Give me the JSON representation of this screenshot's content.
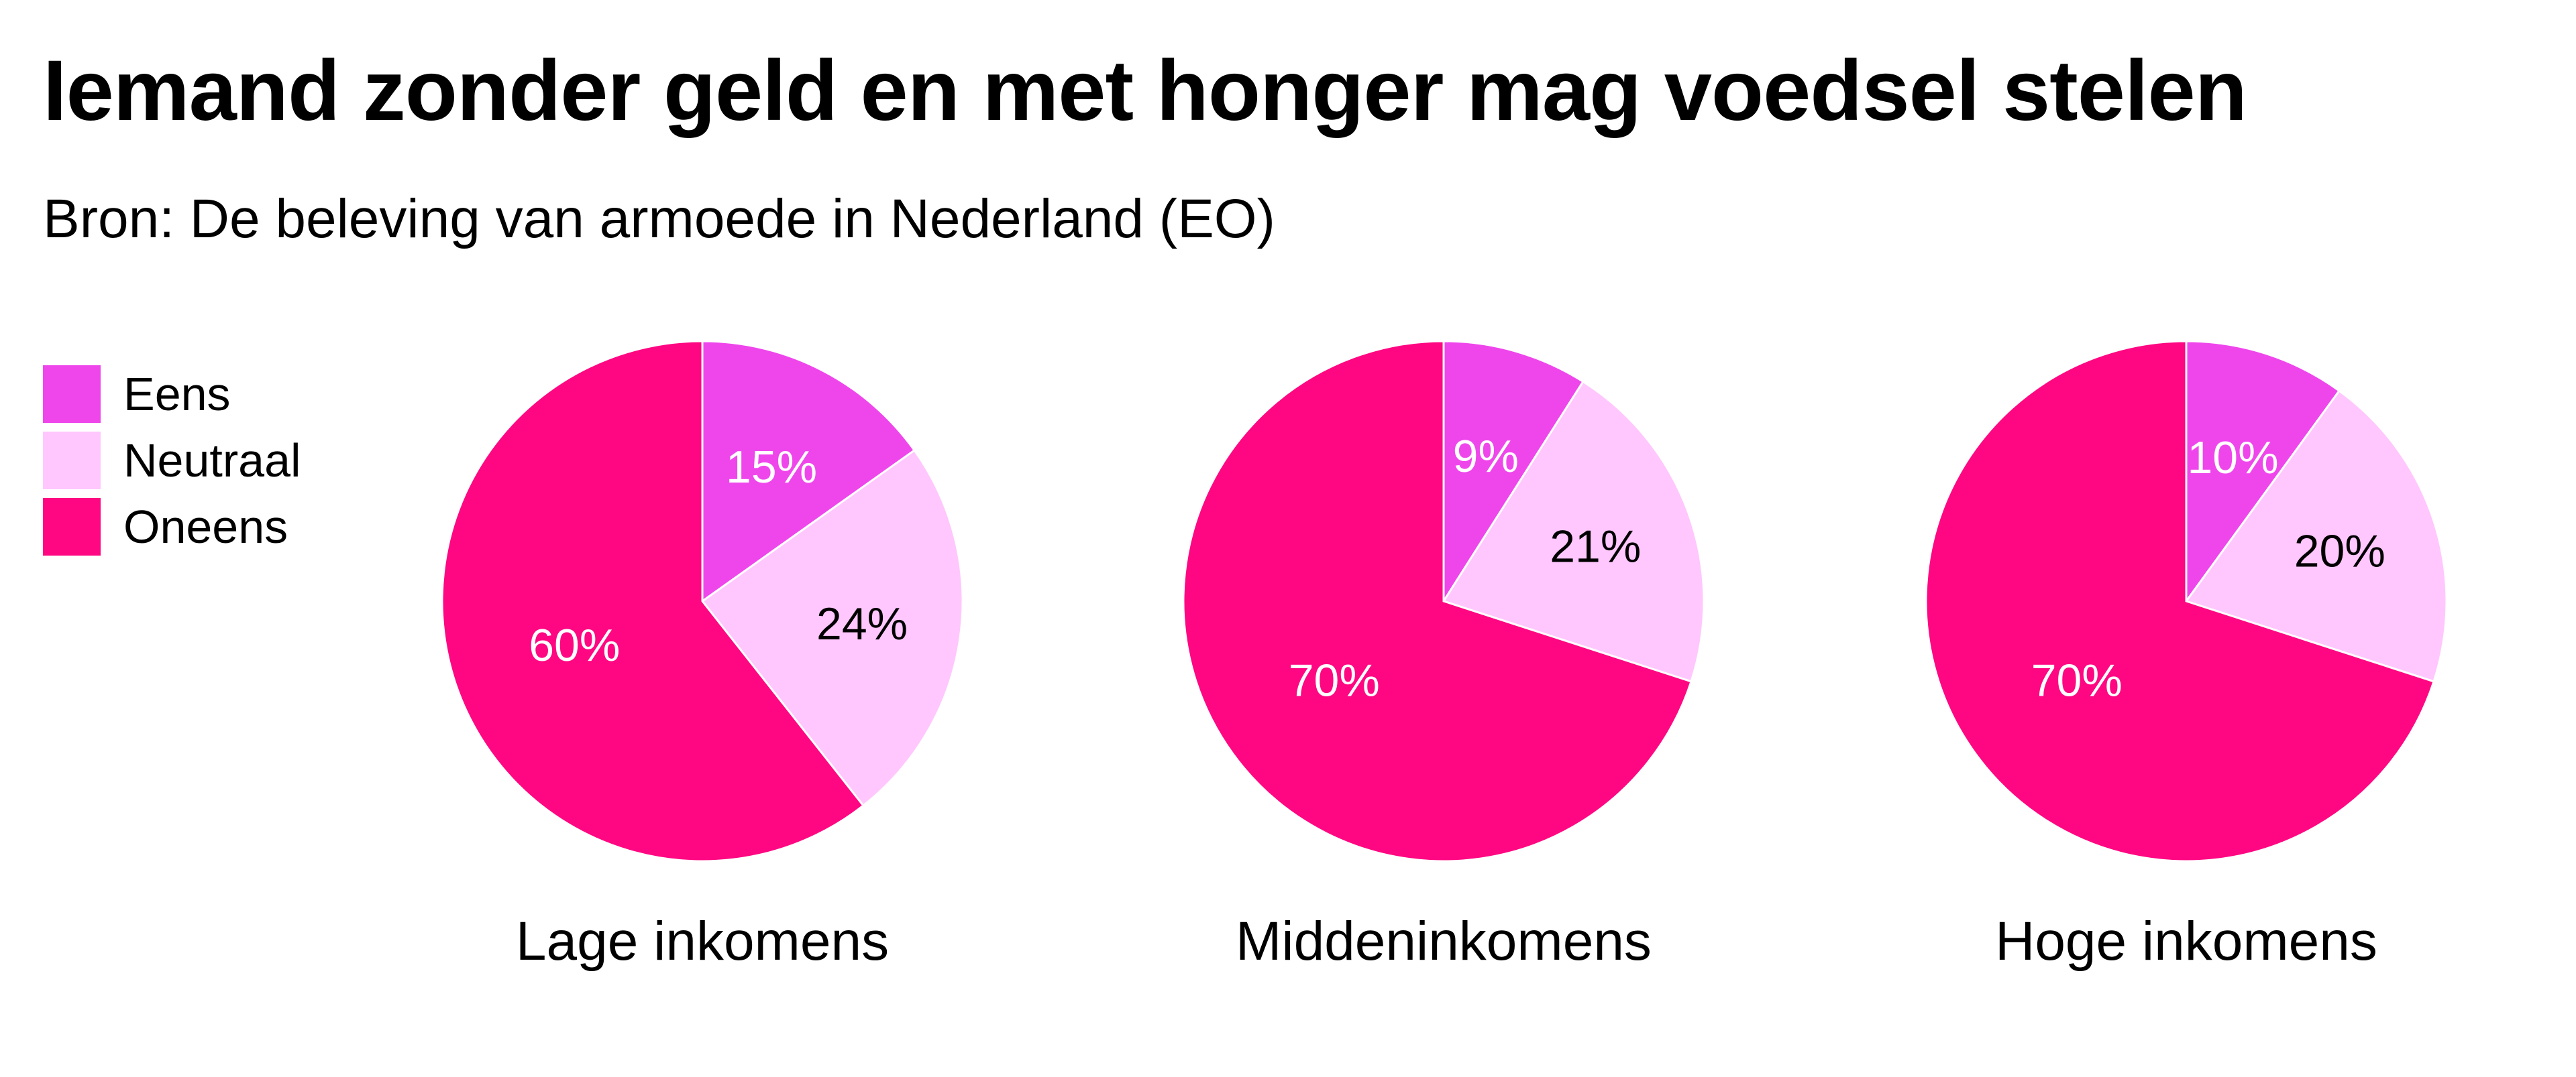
{
  "colors": {
    "eens": "#ef46ec",
    "neutraal": "#ffc7fd",
    "oneens": "#ff0682"
  },
  "chart_data": {
    "type": "pie",
    "title": "Iemand zonder geld en met honger mag voedsel stelen",
    "subtitle": "Bron: De beleving van armoede in Nederland (EO)",
    "legend_position": "top-left",
    "legend": [
      {
        "label": "Eens",
        "color": "#ef46ec",
        "icon": "square-swatch"
      },
      {
        "label": "Neutraal",
        "color": "#ffc7fd",
        "icon": "square-swatch"
      },
      {
        "label": "Oneens",
        "color": "#ff0682",
        "icon": "square-swatch"
      }
    ],
    "categories": [
      "Eens",
      "Neutraal",
      "Oneens"
    ],
    "pies": [
      {
        "name": "Lage inkomens",
        "slices": [
          {
            "category": "Eens",
            "value": 15,
            "label": "15%",
            "label_color": "#ffffff"
          },
          {
            "category": "Neutraal",
            "value": 24,
            "label": "24%",
            "label_color": "#000000"
          },
          {
            "category": "Oneens",
            "value": 60,
            "label": "60%",
            "label_color": "#ffffff"
          }
        ]
      },
      {
        "name": "Middeninkomens",
        "slices": [
          {
            "category": "Eens",
            "value": 9,
            "label": "9%",
            "label_color": "#ffffff"
          },
          {
            "category": "Neutraal",
            "value": 21,
            "label": "21%",
            "label_color": "#000000"
          },
          {
            "category": "Oneens",
            "value": 70,
            "label": "70%",
            "label_color": "#ffffff"
          }
        ]
      },
      {
        "name": "Hoge inkomens",
        "slices": [
          {
            "category": "Eens",
            "value": 10,
            "label": "10%",
            "label_color": "#ffffff"
          },
          {
            "category": "Neutraal",
            "value": 20,
            "label": "20%",
            "label_color": "#000000"
          },
          {
            "category": "Oneens",
            "value": 70,
            "label": "70%",
            "label_color": "#ffffff"
          }
        ]
      }
    ]
  }
}
